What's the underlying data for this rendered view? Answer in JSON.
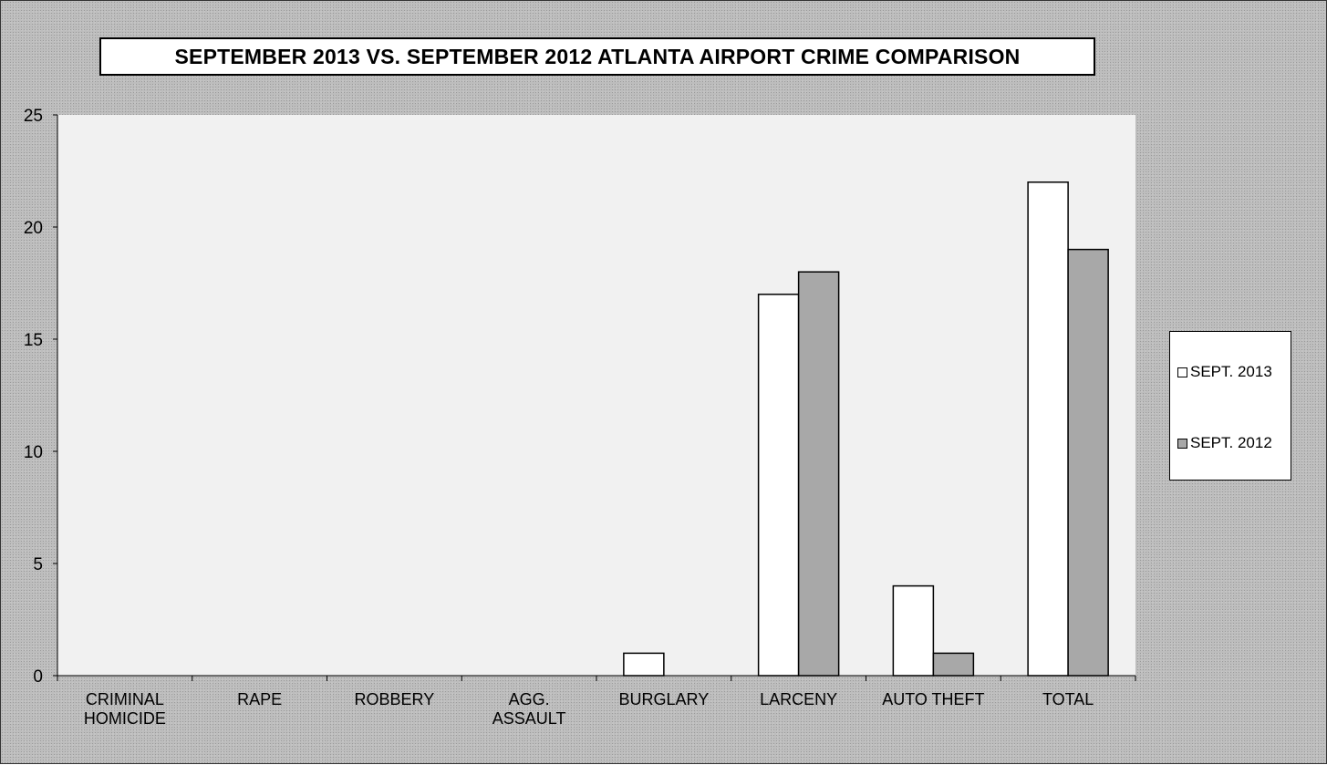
{
  "chart_data": {
    "type": "bar",
    "title": "SEPTEMBER 2013 VS. SEPTEMBER 2012 ATLANTA AIRPORT CRIME COMPARISON",
    "categories": [
      [
        "CRIMINAL",
        "HOMICIDE"
      ],
      [
        "RAPE"
      ],
      [
        "ROBBERY"
      ],
      [
        "AGG.",
        "ASSAULT"
      ],
      [
        "BURGLARY"
      ],
      [
        "LARCENY"
      ],
      [
        "AUTO THEFT"
      ],
      [
        "TOTAL"
      ]
    ],
    "series": [
      {
        "name": "SEPT. 2013",
        "values": [
          0,
          0,
          0,
          0,
          1,
          17,
          4,
          22
        ],
        "color": "#ffffff"
      },
      {
        "name": "SEPT. 2012",
        "values": [
          0,
          0,
          0,
          0,
          0,
          18,
          1,
          19
        ],
        "color": "#a8a8a8"
      }
    ],
    "ylim": [
      0,
      25
    ],
    "yticks": [
      "0",
      "5",
      "10",
      "15",
      "20",
      "25"
    ],
    "xlabel": "",
    "ylabel": "",
    "legend_position": "right",
    "grid": false
  }
}
